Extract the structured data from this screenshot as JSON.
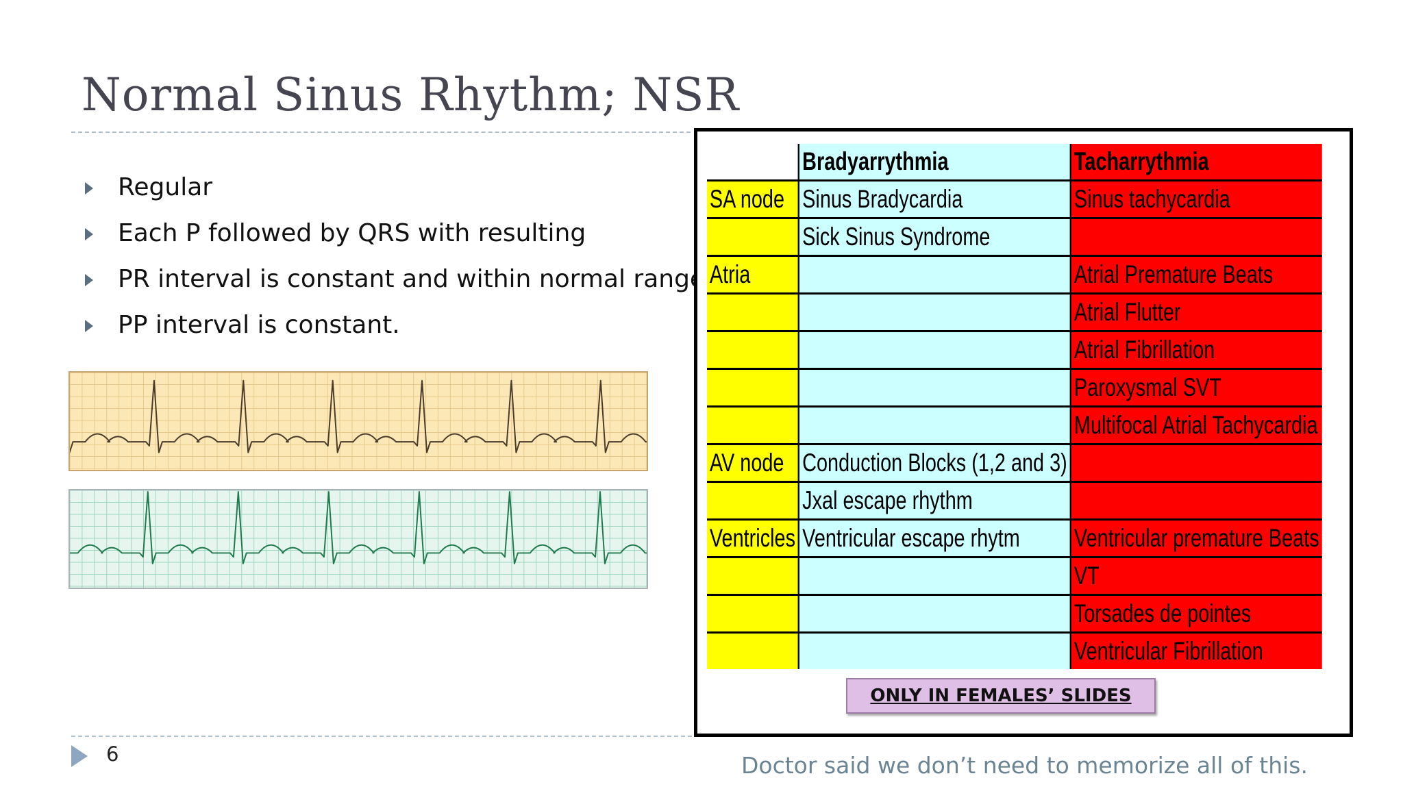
{
  "slide": {
    "title": "Normal Sinus Rhythm; NSR",
    "page_number": "6",
    "note": "Doctor said we don’t need to memorize all of this."
  },
  "bullets": [
    "Regular",
    "Each P followed by QRS with resulting",
    "PR interval is constant and within normal range",
    "PP interval is constant."
  ],
  "table": {
    "headers": [
      "",
      "Bradyarrythmia",
      "Tacharrythmia"
    ],
    "rows": [
      [
        "SA node",
        "Sinus Bradycardia",
        "Sinus tachycardia"
      ],
      [
        "",
        "Sick Sinus Syndrome",
        ""
      ],
      [
        "Atria",
        "",
        "Atrial Premature Beats"
      ],
      [
        "",
        "",
        "Atrial Flutter"
      ],
      [
        "",
        "",
        "Atrial Fibrillation"
      ],
      [
        "",
        "",
        "Paroxysmal SVT"
      ],
      [
        "",
        "",
        "Multifocal Atrial Tachycardia"
      ],
      [
        "AV node",
        "Conduction Blocks (1,2 and 3)",
        ""
      ],
      [
        "",
        "Jxal escape rhythm",
        ""
      ],
      [
        "Ventricles",
        "Ventricular escape rhytm",
        "Ventricular premature Beats"
      ],
      [
        "",
        "",
        "VT"
      ],
      [
        "",
        "",
        "Torsades de pointes"
      ],
      [
        "",
        "",
        "Ventricular Fibrillation"
      ]
    ]
  },
  "badge": "ONLY IN FEMALES’ SLIDES",
  "colors": {
    "region_column": "#ffff00",
    "brady_column": "#ccffff",
    "tachy_column": "#ff0000",
    "ecg_paper_1": "#fbe8b6",
    "ecg_trace_1": "#4a3b2a",
    "ecg_paper_2": "#e6f6ef",
    "ecg_trace_2": "#1f7a4c"
  }
}
